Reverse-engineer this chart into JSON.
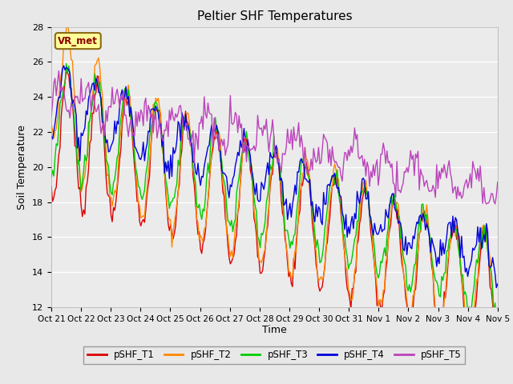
{
  "title": "Peltier SHF Temperatures",
  "xlabel": "Time",
  "ylabel": "Soil Temperature",
  "ylim": [
    12,
    28
  ],
  "yticks": [
    12,
    14,
    16,
    18,
    20,
    22,
    24,
    26,
    28
  ],
  "n_points": 360,
  "n_days": 15,
  "colors": {
    "T1": "#dd0000",
    "T2": "#ff8800",
    "T3": "#00cc00",
    "T4": "#0000dd",
    "T5": "#bb44bb"
  },
  "labels": [
    "pSHF_T1",
    "pSHF_T2",
    "pSHF_T3",
    "pSHF_T4",
    "pSHF_T5"
  ],
  "vr_label": "VR_met",
  "vr_label_color": "#8b0000",
  "bg_color": "#e8e8e8",
  "plot_bg_color": "#ebebeb",
  "xtick_labels": [
    "Oct 21",
    "Oct 22",
    "Oct 23",
    "Oct 24",
    "Oct 25",
    "Oct 26",
    "Oct 27",
    "Oct 28",
    "Oct 29",
    "Oct 30",
    "Oct 31",
    "Nov 1",
    "Nov 2",
    "Nov 3",
    "Nov 4",
    "Nov 5"
  ],
  "linewidth": 1.0,
  "title_fontsize": 11,
  "axis_fontsize": 9,
  "tick_fontsize": 8
}
